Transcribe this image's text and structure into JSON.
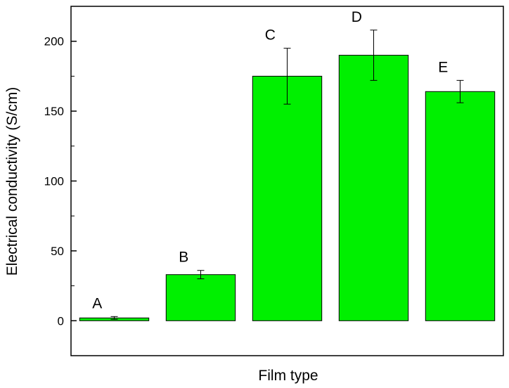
{
  "chart_data": {
    "type": "bar",
    "xlabel": "Film type",
    "ylabel": "Electrical conductivity (S/cm)",
    "ylim": [
      -25,
      225
    ],
    "yticks": [
      0,
      50,
      100,
      150,
      200
    ],
    "categories": [
      "A",
      "B",
      "C",
      "D",
      "E"
    ],
    "values": [
      2,
      33,
      175,
      190,
      164
    ],
    "errors": [
      1,
      3,
      20,
      18,
      8
    ],
    "bar_color": "#00f000",
    "grid": false
  }
}
